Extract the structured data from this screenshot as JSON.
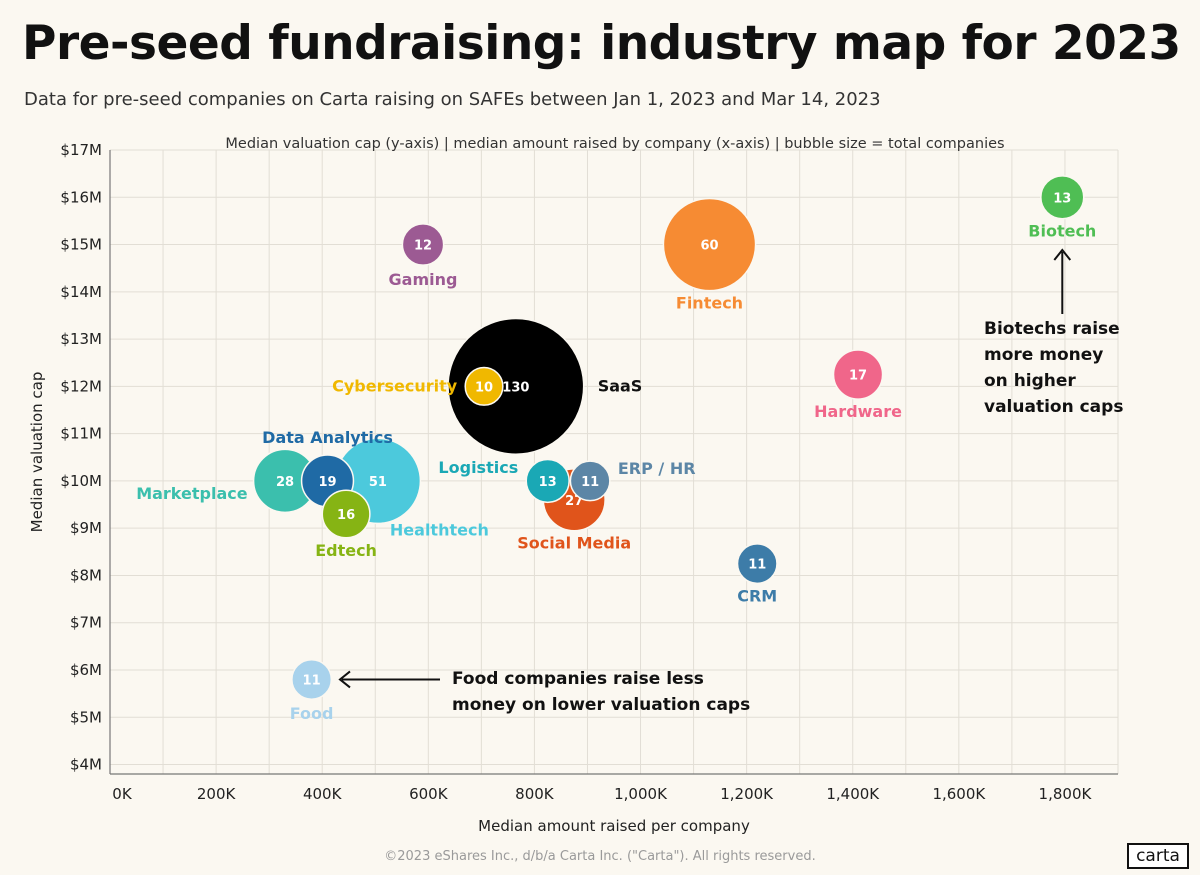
{
  "title": "Pre-seed fundraising: industry map for 2023",
  "subtitle": "Data for pre-seed companies on Carta raising on SAFEs between Jan 1, 2023 and Mar 14, 2023",
  "footer": "©2023 eShares Inc., d/b/a Carta Inc. (\"Carta\"). All rights reserved.",
  "logo": "carta",
  "annotations": {
    "biotech_note": "Biotechs raise\nmore money\non higher\nvaluation caps",
    "food_note": "Food companies raise less\nmoney on lower valuation caps"
  },
  "chart_data": {
    "type": "scatter",
    "variant": "bubble",
    "title": "Median valuation cap (y-axis) |  median amount raised by company (x-axis) | bubble size = total companies",
    "xlabel": "Median amount raised per company",
    "ylabel": "Median valuation cap",
    "xlim": [
      0,
      1900000
    ],
    "ylim": [
      3800000,
      17000000
    ],
    "x_ticks": [
      0,
      200000,
      400000,
      600000,
      800000,
      1000000,
      1200000,
      1400000,
      1600000,
      1800000
    ],
    "x_tick_labels": [
      "0K",
      "200K",
      "400K",
      "600K",
      "800K",
      "1,000K",
      "1,200K",
      "1,400K",
      "1,600K",
      "1,800K"
    ],
    "y_ticks": [
      4000000,
      5000000,
      6000000,
      7000000,
      8000000,
      9000000,
      10000000,
      11000000,
      12000000,
      13000000,
      14000000,
      15000000,
      16000000,
      17000000
    ],
    "y_tick_labels": [
      "$4M",
      "$5M",
      "$6M",
      "$7M",
      "$8M",
      "$9M",
      "$10M",
      "$11M",
      "$12M",
      "$13M",
      "$14M",
      "$15M",
      "$16M",
      "$17M"
    ],
    "grid": true,
    "legend": "none",
    "points": [
      {
        "name": "SaaS",
        "x": 765000,
        "y": 12000000,
        "count": 130,
        "color": "#000000"
      },
      {
        "name": "Fintech",
        "x": 1130000,
        "y": 15000000,
        "count": 60,
        "color": "#f68b33"
      },
      {
        "name": "Healthtech",
        "x": 505000,
        "y": 10000000,
        "count": 51,
        "color": "#4cc9dc"
      },
      {
        "name": "Marketplace",
        "x": 330000,
        "y": 10000000,
        "count": 28,
        "color": "#3bbfad"
      },
      {
        "name": "Social Media",
        "x": 875000,
        "y": 9600000,
        "count": 27,
        "color": "#e0541b"
      },
      {
        "name": "Data Analytics",
        "x": 410000,
        "y": 10000000,
        "count": 19,
        "color": "#1f6aa5"
      },
      {
        "name": "Hardware",
        "x": 1410000,
        "y": 12250000,
        "count": 17,
        "color": "#f0668a"
      },
      {
        "name": "Edtech",
        "x": 445000,
        "y": 9300000,
        "count": 16,
        "color": "#86b414"
      },
      {
        "name": "Logistics",
        "x": 825000,
        "y": 10000000,
        "count": 13,
        "color": "#1aa8b5"
      },
      {
        "name": "Biotech",
        "x": 1795000,
        "y": 16000000,
        "count": 13,
        "color": "#4fbe54"
      },
      {
        "name": "Gaming",
        "x": 590000,
        "y": 15000000,
        "count": 12,
        "color": "#9c5a93"
      },
      {
        "name": "ERP / HR",
        "x": 905000,
        "y": 10000000,
        "count": 11,
        "color": "#5c86a6"
      },
      {
        "name": "CRM",
        "x": 1220000,
        "y": 8250000,
        "count": 11,
        "color": "#3d7ca8"
      },
      {
        "name": "Food",
        "x": 380000,
        "y": 5800000,
        "count": 11,
        "color": "#a8d2ec"
      },
      {
        "name": "Cybersecurity",
        "x": 705000,
        "y": 12000000,
        "count": 10,
        "color": "#f0b800"
      }
    ]
  }
}
